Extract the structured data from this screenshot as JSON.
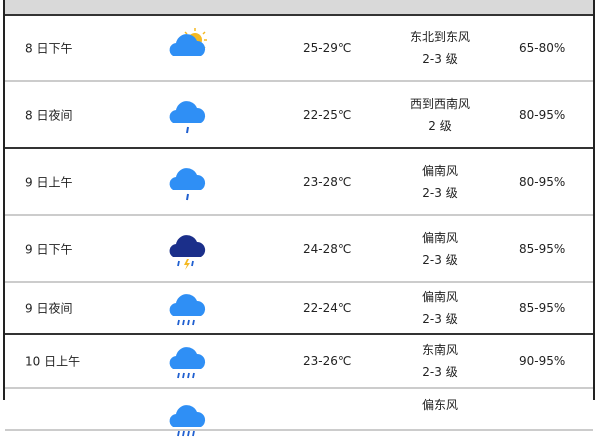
{
  "rows": [
    {
      "date": "8 日下午",
      "icon": "partly-cloudy-icon",
      "temp": "25-29℃",
      "wind_dir": "东北到东风",
      "wind_level": "2-3 级",
      "humidity": "65-80%"
    },
    {
      "date": "8 日夜间",
      "icon": "light-rain-icon",
      "temp": "22-25℃",
      "wind_dir": "西到西南风",
      "wind_level": "2 级",
      "humidity": "80-95%"
    },
    {
      "date": "9 日上午",
      "icon": "light-rain-icon",
      "temp": "23-28℃",
      "wind_dir": "偏南风",
      "wind_level": "2-3 级",
      "humidity": "80-95%"
    },
    {
      "date": "9 日下午",
      "icon": "thunderstorm-icon",
      "temp": "24-28℃",
      "wind_dir": "偏南风",
      "wind_level": "2-3 级",
      "humidity": "85-95%"
    },
    {
      "date": "9 日夜间",
      "icon": "heavy-rain-icon",
      "temp": "22-24℃",
      "wind_dir": "偏南风",
      "wind_level": "2-3 级",
      "humidity": "85-95%"
    },
    {
      "date": "10 日上午",
      "icon": "heavy-rain-icon",
      "temp": "23-26℃",
      "wind_dir": "东南风",
      "wind_level": "2-3 级",
      "humidity": "90-95%"
    },
    {
      "date": "",
      "icon": "rain-icon",
      "temp": "",
      "wind_dir": "偏东风",
      "wind_level": "",
      "humidity": ""
    }
  ],
  "colors": {
    "cloud": "#2f8ff5",
    "storm_cloud": "#1b2f8a",
    "sun": "#f5b921",
    "rain": "#1f5fd0"
  }
}
